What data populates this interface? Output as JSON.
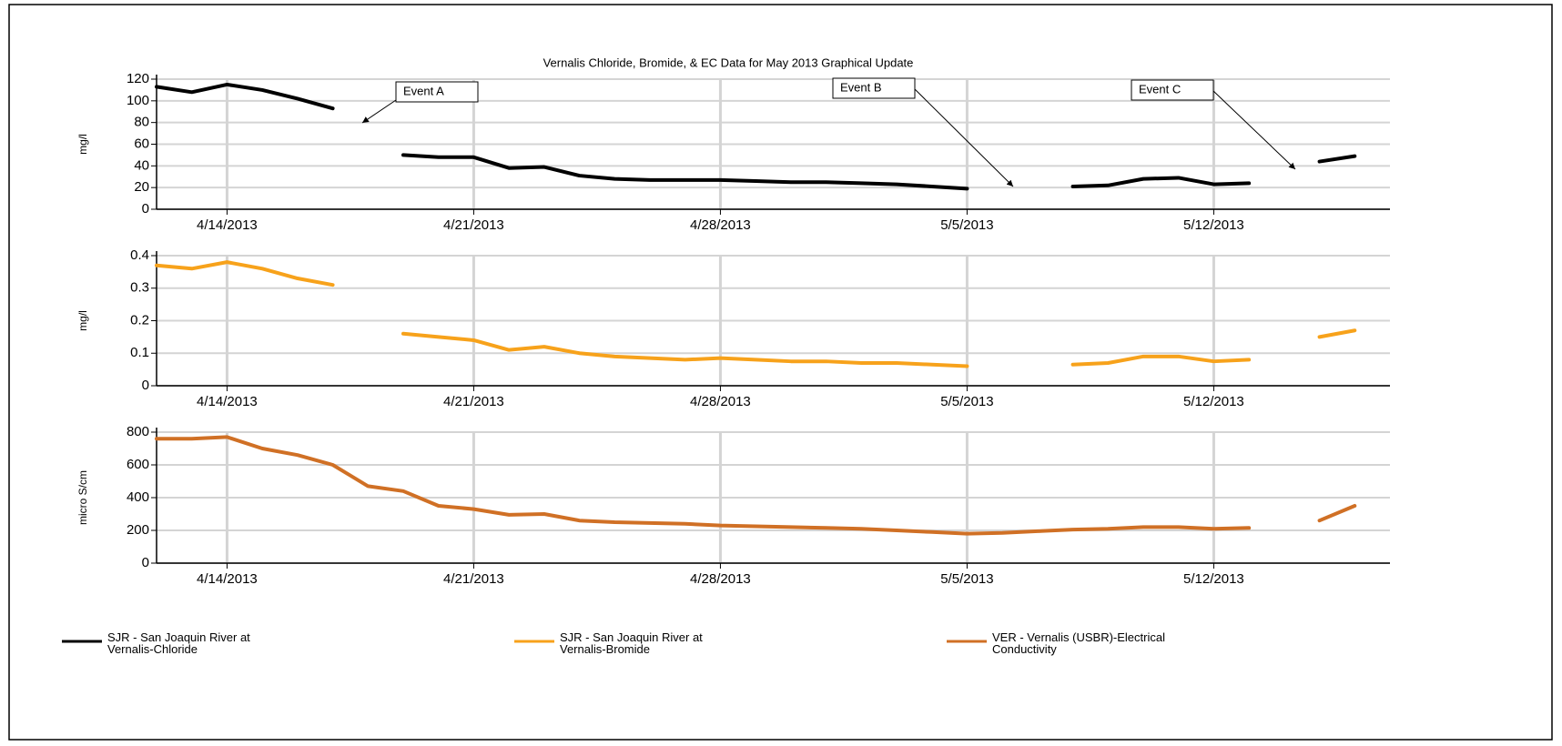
{
  "chart_data": [
    {
      "type": "line",
      "title": "Vernalis Chloride, Bromide, & EC Data for May 2013 Graphical Update",
      "y_label": "mg/l",
      "x": [
        "2013-04-12",
        "2013-04-13",
        "2013-04-14",
        "2013-04-15",
        "2013-04-16",
        "2013-04-17",
        "2013-04-18",
        "2013-04-19",
        "2013-04-20",
        "2013-04-21",
        "2013-04-22",
        "2013-04-23",
        "2013-04-24",
        "2013-04-25",
        "2013-04-26",
        "2013-04-27",
        "2013-04-28",
        "2013-04-29",
        "2013-04-30",
        "2013-05-01",
        "2013-05-02",
        "2013-05-03",
        "2013-05-04",
        "2013-05-05",
        "2013-05-06",
        "2013-05-07",
        "2013-05-08",
        "2013-05-09",
        "2013-05-10",
        "2013-05-11",
        "2013-05-12",
        "2013-05-13",
        "2013-05-14",
        "2013-05-15",
        "2013-05-16"
      ],
      "series": [
        {
          "name": "SJR - San Joaquin River at Vernalis-Chloride",
          "color": "#000000",
          "values": [
            113,
            108,
            115,
            110,
            102,
            93,
            null,
            50,
            48,
            48,
            38,
            39,
            31,
            28,
            27,
            27,
            27,
            26,
            25,
            25,
            24,
            23,
            21,
            19,
            null,
            null,
            21,
            22,
            28,
            29,
            23,
            24,
            null,
            44,
            49
          ]
        }
      ],
      "xlim": [
        "2013-04-12",
        "2013-05-17"
      ],
      "xticks": [
        {
          "value": "2013-04-14",
          "label": "4/14/2013"
        },
        {
          "value": "2013-04-21",
          "label": "4/21/2013"
        },
        {
          "value": "2013-04-28",
          "label": "4/28/2013"
        },
        {
          "value": "2013-05-05",
          "label": "5/5/2013"
        },
        {
          "value": "2013-05-12",
          "label": "5/12/2013"
        }
      ],
      "ylim": [
        0,
        120
      ],
      "yticks": [
        0,
        20,
        40,
        60,
        80,
        100,
        120
      ],
      "grid": true,
      "annotations": [
        "Event A",
        "Event B",
        "Event C"
      ]
    },
    {
      "type": "line",
      "y_label": "mg/l",
      "x": [
        "2013-04-12",
        "2013-04-13",
        "2013-04-14",
        "2013-04-15",
        "2013-04-16",
        "2013-04-17",
        "2013-04-18",
        "2013-04-19",
        "2013-04-20",
        "2013-04-21",
        "2013-04-22",
        "2013-04-23",
        "2013-04-24",
        "2013-04-25",
        "2013-04-26",
        "2013-04-27",
        "2013-04-28",
        "2013-04-29",
        "2013-04-30",
        "2013-05-01",
        "2013-05-02",
        "2013-05-03",
        "2013-05-04",
        "2013-05-05",
        "2013-05-06",
        "2013-05-07",
        "2013-05-08",
        "2013-05-09",
        "2013-05-10",
        "2013-05-11",
        "2013-05-12",
        "2013-05-13",
        "2013-05-14",
        "2013-05-15",
        "2013-05-16"
      ],
      "series": [
        {
          "name": "SJR - San Joaquin River at Vernalis-Bromide",
          "color": "#f7a21b",
          "values": [
            0.37,
            0.36,
            0.38,
            0.36,
            0.33,
            0.31,
            null,
            0.16,
            0.15,
            0.14,
            0.11,
            0.12,
            0.1,
            0.09,
            0.085,
            0.08,
            0.085,
            0.08,
            0.075,
            0.075,
            0.07,
            0.07,
            0.065,
            0.06,
            null,
            null,
            0.065,
            0.07,
            0.09,
            0.09,
            0.075,
            0.08,
            null,
            0.15,
            0.17
          ]
        }
      ],
      "xlim": [
        "2013-04-12",
        "2013-05-17"
      ],
      "xticks": [
        {
          "value": "2013-04-14",
          "label": "4/14/2013"
        },
        {
          "value": "2013-04-21",
          "label": "4/21/2013"
        },
        {
          "value": "2013-04-28",
          "label": "4/28/2013"
        },
        {
          "value": "2013-05-05",
          "label": "5/5/2013"
        },
        {
          "value": "2013-05-12",
          "label": "5/12/2013"
        }
      ],
      "ylim": [
        0,
        0.4
      ],
      "yticks": [
        0,
        0.1,
        0.2,
        0.3,
        0.4
      ],
      "grid": true
    },
    {
      "type": "line",
      "y_label": "micro S/cm",
      "x": [
        "2013-04-12",
        "2013-04-13",
        "2013-04-14",
        "2013-04-15",
        "2013-04-16",
        "2013-04-17",
        "2013-04-18",
        "2013-04-19",
        "2013-04-20",
        "2013-04-21",
        "2013-04-22",
        "2013-04-23",
        "2013-04-24",
        "2013-04-25",
        "2013-04-26",
        "2013-04-27",
        "2013-04-28",
        "2013-04-29",
        "2013-04-30",
        "2013-05-01",
        "2013-05-02",
        "2013-05-03",
        "2013-05-04",
        "2013-05-05",
        "2013-05-06",
        "2013-05-07",
        "2013-05-08",
        "2013-05-09",
        "2013-05-10",
        "2013-05-11",
        "2013-05-12",
        "2013-05-13",
        "2013-05-14",
        "2013-05-15",
        "2013-05-16"
      ],
      "series": [
        {
          "name": "VER - Vernalis (USBR)-Electrical Conductivity",
          "color": "#d07025",
          "values": [
            760,
            760,
            770,
            700,
            660,
            600,
            470,
            440,
            350,
            330,
            295,
            300,
            260,
            250,
            245,
            240,
            230,
            225,
            220,
            215,
            210,
            200,
            190,
            180,
            185,
            195,
            205,
            210,
            220,
            220,
            210,
            215,
            null,
            260,
            350
          ]
        }
      ],
      "xlim": [
        "2013-04-12",
        "2013-05-17"
      ],
      "xticks": [
        {
          "value": "2013-04-14",
          "label": "4/14/2013"
        },
        {
          "value": "2013-04-21",
          "label": "4/21/2013"
        },
        {
          "value": "2013-04-28",
          "label": "4/28/2013"
        },
        {
          "value": "2013-05-05",
          "label": "5/5/2013"
        },
        {
          "value": "2013-05-12",
          "label": "5/12/2013"
        }
      ],
      "ylim": [
        0,
        800
      ],
      "yticks": [
        0,
        200,
        400,
        600,
        800
      ],
      "grid": true
    }
  ]
}
